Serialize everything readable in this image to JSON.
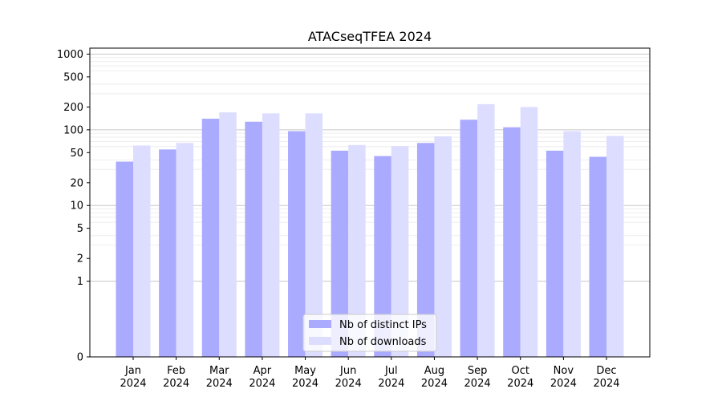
{
  "chart_data": {
    "type": "bar",
    "title": "ATACseqTFEA 2024",
    "xlabel": "",
    "ylabel": "",
    "y_scale": "symlog",
    "ylim": [
      0,
      1200
    ],
    "y_ticks": [
      0,
      1,
      2,
      5,
      10,
      20,
      50,
      100,
      200,
      500,
      1000
    ],
    "categories": [
      [
        "Jan",
        "2024"
      ],
      [
        "Feb",
        "2024"
      ],
      [
        "Mar",
        "2024"
      ],
      [
        "Apr",
        "2024"
      ],
      [
        "May",
        "2024"
      ],
      [
        "Jun",
        "2024"
      ],
      [
        "Jul",
        "2024"
      ],
      [
        "Aug",
        "2024"
      ],
      [
        "Sep",
        "2024"
      ],
      [
        "Oct",
        "2024"
      ],
      [
        "Nov",
        "2024"
      ],
      [
        "Dec",
        "2024"
      ]
    ],
    "series": [
      {
        "name": "Nb of distinct IPs",
        "color": "#aaaaff",
        "values": [
          38,
          55,
          140,
          128,
          96,
          53,
          45,
          67,
          136,
          108,
          53,
          44
        ]
      },
      {
        "name": "Nb of downloads",
        "color": "#ddddff",
        "values": [
          62,
          67,
          170,
          165,
          165,
          63,
          61,
          82,
          218,
          200,
          96,
          83
        ]
      }
    ],
    "grid": true,
    "legend_position": "bottom-center"
  }
}
